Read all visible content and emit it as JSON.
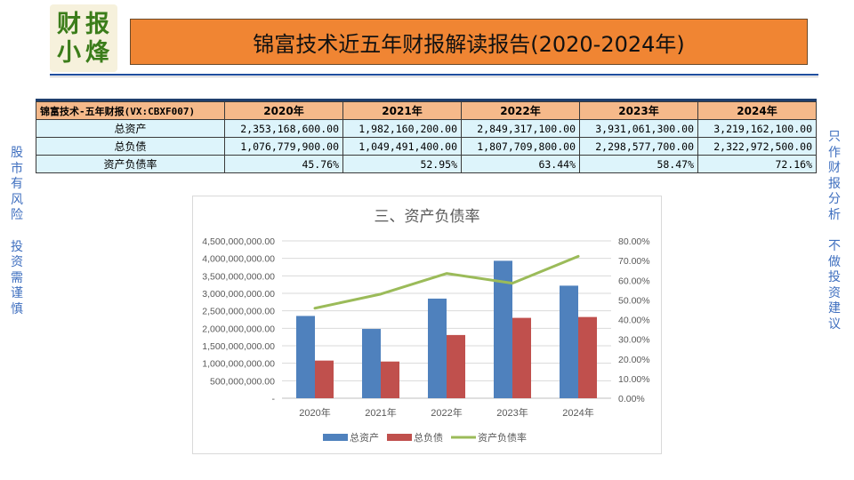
{
  "logo": {
    "chars": [
      "财",
      "报",
      "小",
      "烽"
    ]
  },
  "header": {
    "title": "锦富技术近五年财报解读报告(2020-2024年)"
  },
  "side_left": {
    "line1": [
      "股",
      "市",
      "有",
      "风",
      "险"
    ],
    "line2": [
      "投",
      "资",
      "需",
      "谨",
      "慎"
    ]
  },
  "side_right": {
    "line1": [
      "只",
      "作",
      "财",
      "报",
      "分",
      "析"
    ],
    "line2": [
      "不",
      "做",
      "投",
      "资",
      "建",
      "议"
    ]
  },
  "table": {
    "header": [
      "锦富技术-五年财报(VX:CBXF007)",
      "2020年",
      "2021年",
      "2022年",
      "2023年",
      "2024年"
    ],
    "rows": [
      {
        "label": "总资产",
        "values": [
          "2,353,168,600.00",
          "1,982,160,200.00",
          "2,849,317,100.00",
          "3,931,061,300.00",
          "3,219,162,100.00"
        ]
      },
      {
        "label": "总负债",
        "values": [
          "1,076,779,900.00",
          "1,049,491,400.00",
          "1,807,709,800.00",
          "2,298,577,700.00",
          "2,322,972,500.00"
        ]
      },
      {
        "label": "资产负债率",
        "values": [
          "45.76%",
          "52.95%",
          "63.44%",
          "58.47%",
          "72.16%"
        ]
      }
    ]
  },
  "colors": {
    "assets": "#4f81bd",
    "liabilities": "#c0504d",
    "ratio": "#9bbb59",
    "title_bar": "#f08533",
    "table_header": "#f5b98a",
    "table_cell": "#ddf4fb",
    "side_text": "#3f6fbf"
  },
  "chart_data": {
    "type": "bar",
    "title": "三、资产负债率",
    "categories": [
      "2020年",
      "2021年",
      "2022年",
      "2023年",
      "2024年"
    ],
    "series": [
      {
        "name": "总资产",
        "type": "bar",
        "axis": "left",
        "values": [
          2353168600,
          1982160200,
          2849317100,
          3931061300,
          3219162100
        ]
      },
      {
        "name": "总负债",
        "type": "bar",
        "axis": "left",
        "values": [
          1076779900,
          1049491400,
          1807709800,
          2298577700,
          2322972500
        ]
      },
      {
        "name": "资产负债率",
        "type": "line",
        "axis": "right",
        "values": [
          45.76,
          52.95,
          63.44,
          58.47,
          72.16
        ]
      }
    ],
    "y_left": {
      "ylim": [
        0,
        4500000000
      ],
      "ticks": [
        "-",
        "500,000,000.00",
        "1,000,000,000.00",
        "1,500,000,000.00",
        "2,000,000,000.00",
        "2,500,000,000.00",
        "3,000,000,000.00",
        "3,500,000,000.00",
        "4,000,000,000.00",
        "4,500,000,000.00"
      ]
    },
    "y_right": {
      "ylim": [
        0,
        80
      ],
      "ticks": [
        "0.00%",
        "10.00%",
        "20.00%",
        "30.00%",
        "40.00%",
        "50.00%",
        "60.00%",
        "70.00%",
        "80.00%"
      ]
    },
    "grid": true,
    "legend": "bottom"
  }
}
